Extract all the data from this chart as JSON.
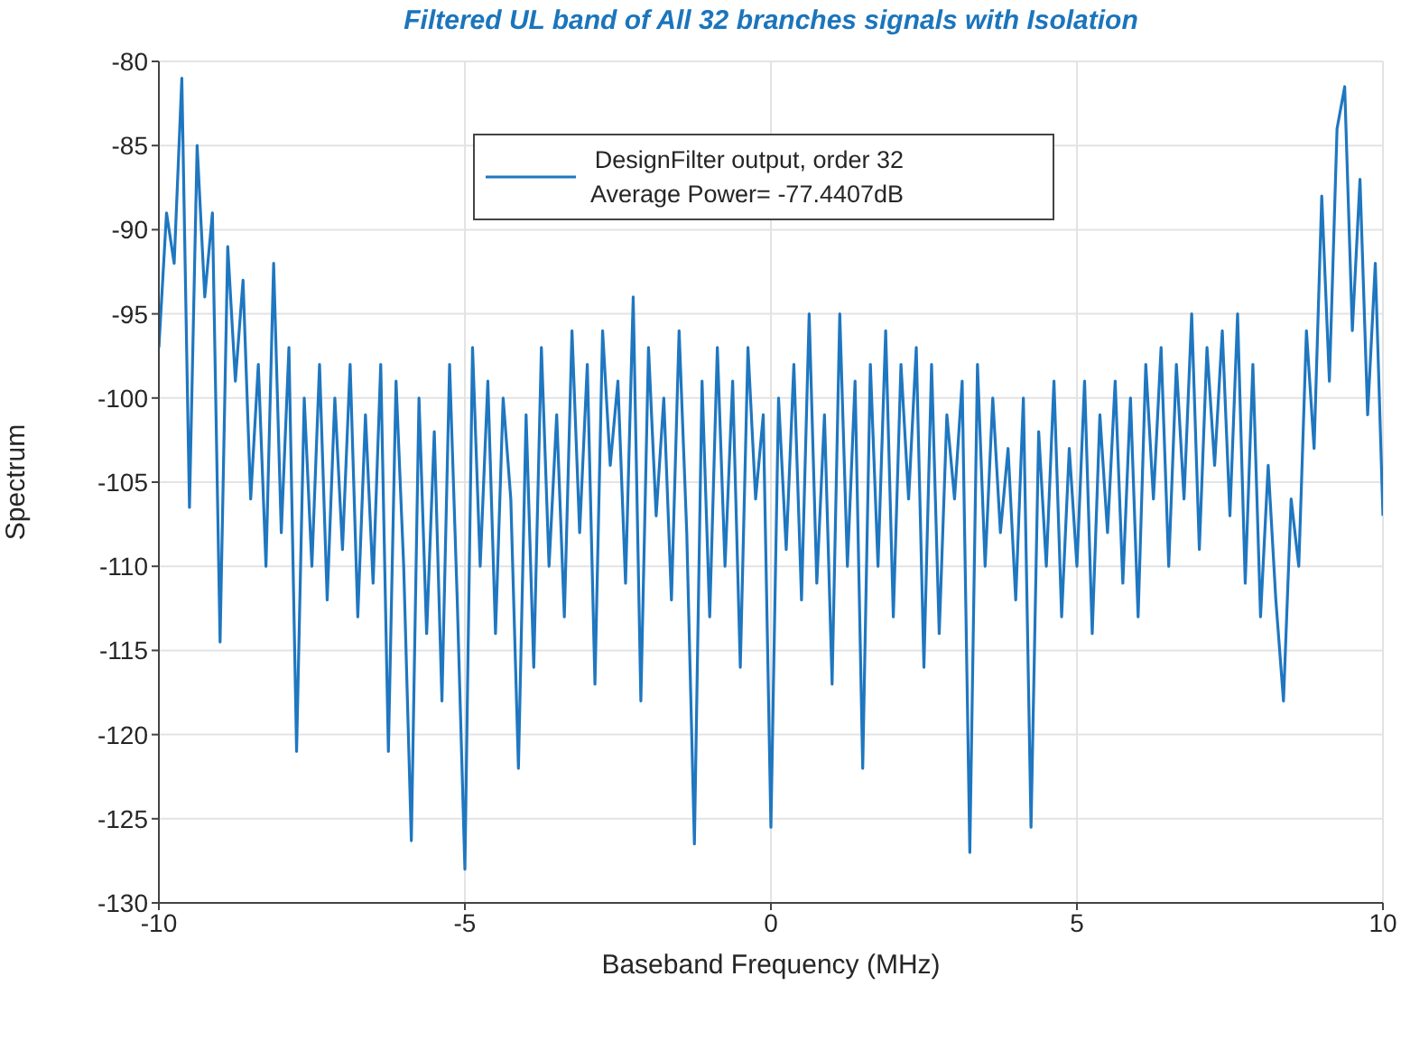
{
  "chart_data": {
    "type": "line",
    "title": "Filtered UL band of All 32 branches signals with Isolation",
    "xlabel": "Baseband Frequency (MHz)",
    "ylabel": "Spectrum",
    "xlim": [
      -10,
      10
    ],
    "xticks": [
      -10,
      -5,
      0,
      5,
      10
    ],
    "ylim": [
      -130,
      -80
    ],
    "yticks": [
      -130,
      -125,
      -120,
      -115,
      -110,
      -105,
      -100,
      -95,
      -90,
      -85,
      -80
    ],
    "grid": true,
    "legend": "top",
    "marker": "none",
    "line_style": "solid",
    "x": [
      -10,
      -9.875,
      -9.75,
      -9.625,
      -9.5,
      -9.375,
      -9.25,
      -9.125,
      -9,
      -8.875,
      -8.75,
      -8.625,
      -8.5,
      -8.375,
      -8.25,
      -8.125,
      -8,
      -7.875,
      -7.75,
      -7.625,
      -7.5,
      -7.375,
      -7.25,
      -7.125,
      -7,
      -6.875,
      -6.75,
      -6.625,
      -6.5,
      -6.375,
      -6.25,
      -6.125,
      -6,
      -5.875,
      -5.75,
      -5.625,
      -5.5,
      -5.375,
      -5.25,
      -5.125,
      -5,
      -4.875,
      -4.75,
      -4.625,
      -4.5,
      -4.375,
      -4.25,
      -4.125,
      -4,
      -3.875,
      -3.75,
      -3.625,
      -3.5,
      -3.375,
      -3.25,
      -3.125,
      -3,
      -2.875,
      -2.75,
      -2.625,
      -2.5,
      -2.375,
      -2.25,
      -2.125,
      -2,
      -1.875,
      -1.75,
      -1.625,
      -1.5,
      -1.375,
      -1.25,
      -1.125,
      -1,
      -0.875,
      -0.75,
      -0.625,
      -0.5,
      -0.375,
      -0.25,
      -0.125,
      0,
      0.125,
      0.25,
      0.375,
      0.5,
      0.625,
      0.75,
      0.875,
      1,
      1.125,
      1.25,
      1.375,
      1.5,
      1.625,
      1.75,
      1.875,
      2,
      2.125,
      2.25,
      2.375,
      2.5,
      2.625,
      2.75,
      2.875,
      3,
      3.125,
      3.25,
      3.375,
      3.5,
      3.625,
      3.75,
      3.875,
      4,
      4.125,
      4.25,
      4.375,
      4.5,
      4.625,
      4.75,
      4.875,
      5,
      5.125,
      5.25,
      5.375,
      5.5,
      5.625,
      5.75,
      5.875,
      6,
      6.125,
      6.25,
      6.375,
      6.5,
      6.625,
      6.75,
      6.875,
      7,
      7.125,
      7.25,
      7.375,
      7.5,
      7.625,
      7.75,
      7.875,
      8,
      8.125,
      8.25,
      8.375,
      8.5,
      8.625,
      8.75,
      8.875,
      9,
      9.125,
      9.25,
      9.375,
      9.5,
      9.625,
      9.75,
      9.875,
      10
    ],
    "series": [
      {
        "name": "DesignFilter output, order 32\nAverage Power= -77.4407dB",
        "color": "#1f77c0",
        "values": [
          -97,
          -89,
          -92,
          -81,
          -106.5,
          -85,
          -94,
          -89,
          -114.5,
          -91,
          -99,
          -93,
          -106,
          -98,
          -110,
          -92,
          -108,
          -97,
          -121,
          -100,
          -110,
          -98,
          -112,
          -100,
          -109,
          -98,
          -113,
          -101,
          -111,
          -98,
          -121,
          -99,
          -110,
          -126.3,
          -100,
          -114,
          -102,
          -118,
          -98,
          -112,
          -128,
          -97,
          -110,
          -99,
          -114,
          -100,
          -106,
          -122,
          -101,
          -116,
          -97,
          -110,
          -101,
          -113,
          -96,
          -108,
          -98,
          -117,
          -96,
          -104,
          -99,
          -111,
          -94,
          -118,
          -97,
          -107,
          -100,
          -112,
          -96,
          -108,
          -126.5,
          -99,
          -113,
          -97,
          -110,
          -99,
          -116,
          -97,
          -106,
          -101,
          -125.5,
          -100,
          -109,
          -98,
          -112,
          -95,
          -111,
          -101,
          -117,
          -95,
          -110,
          -99,
          -122,
          -98,
          -110,
          -96,
          -113,
          -98,
          -106,
          -97,
          -116,
          -98,
          -114,
          -101,
          -106,
          -99,
          -127,
          -98,
          -110,
          -100,
          -108,
          -103,
          -112,
          -100,
          -125.5,
          -102,
          -110,
          -99,
          -113,
          -103,
          -110,
          -99,
          -114,
          -101,
          -108,
          -99,
          -111,
          -100,
          -113,
          -98,
          -106,
          -97,
          -110,
          -98,
          -106,
          -95,
          -109,
          -97,
          -104,
          -96,
          -107,
          -95,
          -111,
          -98,
          -113,
          -104,
          -112,
          -118,
          -106,
          -110,
          -96,
          -103,
          -88,
          -99,
          -84,
          -81.5,
          -96,
          -87,
          -101,
          -92,
          -107
        ]
      }
    ]
  }
}
